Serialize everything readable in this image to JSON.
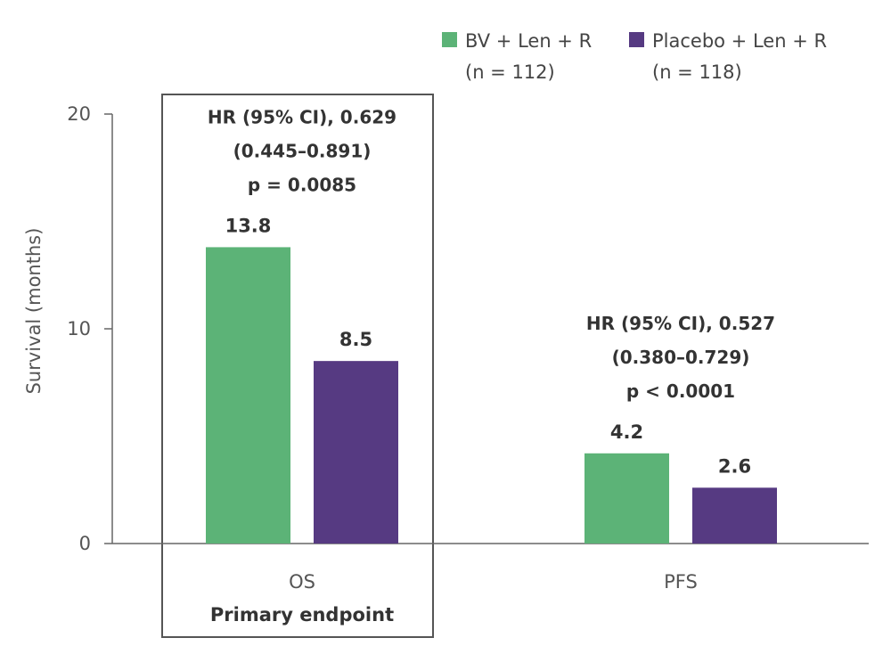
{
  "chart_data": {
    "type": "bar",
    "ylabel": "Survival (months)",
    "ylim": [
      0,
      20
    ],
    "yticks": [
      0,
      10,
      20
    ],
    "categories": [
      "OS",
      "PFS"
    ],
    "category_sublabels": [
      "Primary endpoint",
      ""
    ],
    "series": [
      {
        "name": "BV + Len + R",
        "n_label": "(n = 112)",
        "color": "#5cb377",
        "values": [
          13.8,
          4.2
        ],
        "value_labels": [
          "13.8",
          "4.2"
        ]
      },
      {
        "name": "Placebo + Len + R",
        "n_label": "(n = 118)",
        "color": "#563a82",
        "values": [
          8.5,
          2.6
        ],
        "value_labels": [
          "8.5",
          "2.6"
        ]
      }
    ],
    "annotations": [
      {
        "category": "OS",
        "lines": [
          "HR (95% CI), 0.629",
          "(0.445–0.891)",
          "p = 0.0085"
        ]
      },
      {
        "category": "PFS",
        "lines": [
          "HR (95% CI), 0.527",
          "(0.380–0.729)",
          "p < 0.0001"
        ]
      }
    ],
    "highlight_box_category": "OS",
    "legend_position": "top-right"
  }
}
